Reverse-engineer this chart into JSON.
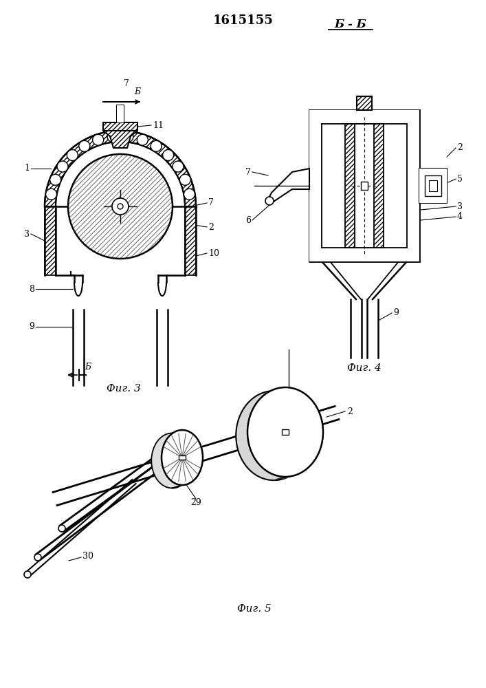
{
  "title": "1615155",
  "title_fontsize": 13,
  "background_color": "#ffffff",
  "line_color": "#000000",
  "fig3_label": "Фиг. 3",
  "fig4_label": "Фиг. 4",
  "fig5_label": "Фиг. 5",
  "section_label": "Б - Б",
  "b_label": "Б"
}
